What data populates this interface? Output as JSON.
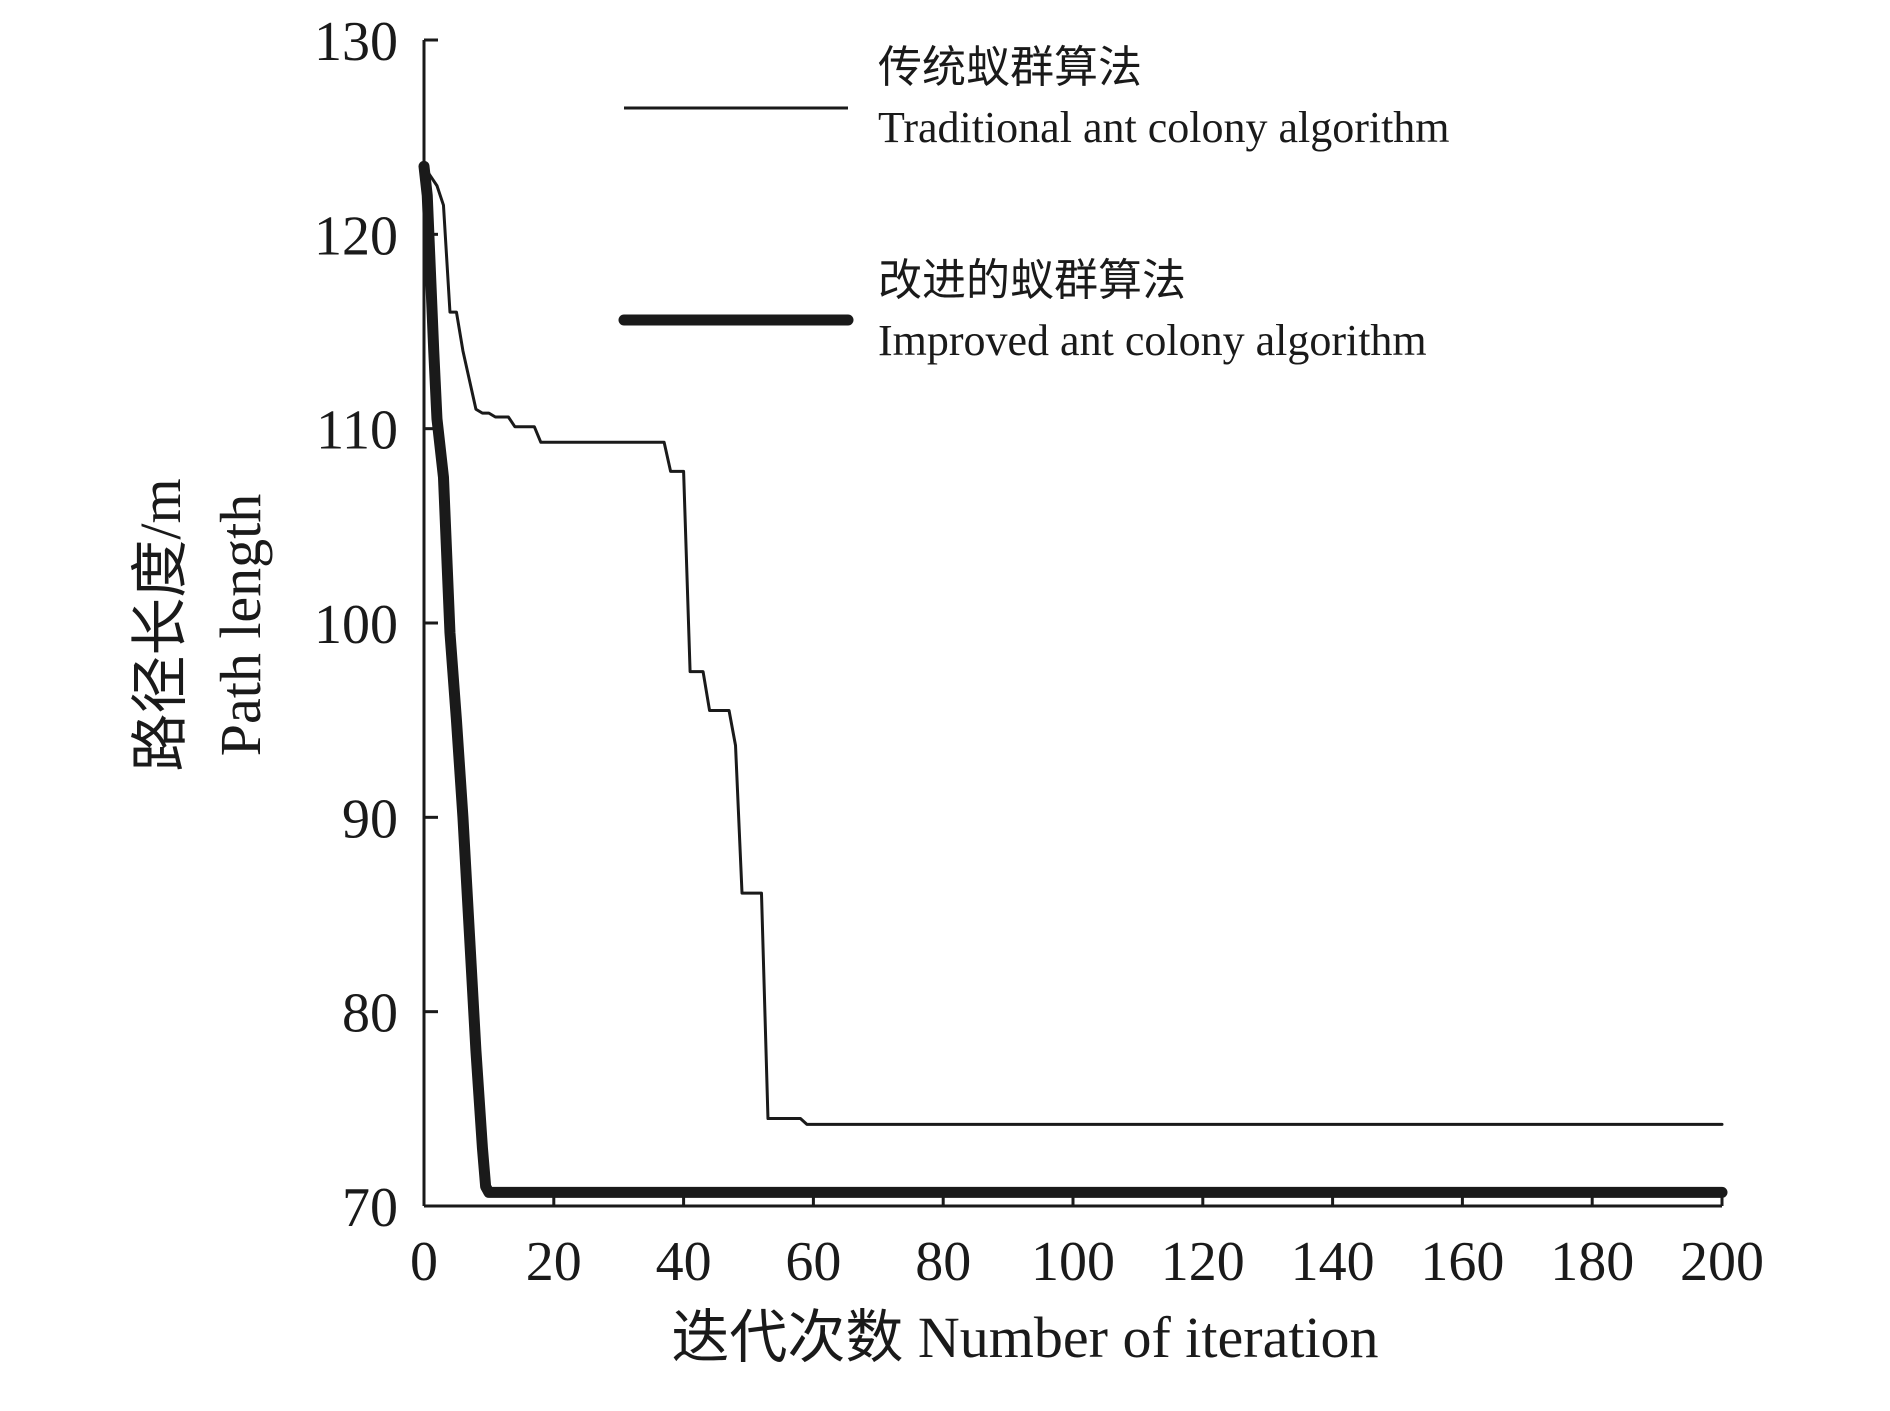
{
  "chart_data": {
    "type": "line",
    "xlabel": "迭代次数 Number of iteration",
    "ylabel_zh": "路径长度/m",
    "ylabel_en": "Path length",
    "xlim": [
      0,
      200
    ],
    "ylim": [
      70,
      130
    ],
    "xticks": [
      0,
      20,
      40,
      60,
      80,
      100,
      120,
      140,
      160,
      180,
      200
    ],
    "yticks": [
      70,
      80,
      90,
      100,
      110,
      120,
      130
    ],
    "grid": false,
    "legend_position": "top",
    "series": [
      {
        "name_zh": "传统蚁群算法",
        "name_en": "Traditional ant colony algorithm",
        "color": "#1a1a1a",
        "weight": "thin",
        "x": [
          0,
          1,
          2,
          3,
          4,
          5,
          6,
          7,
          8,
          9,
          10,
          11,
          12,
          13,
          14,
          15,
          16,
          17,
          18,
          19,
          20,
          25,
          30,
          35,
          36,
          37,
          38,
          39,
          40,
          41,
          42,
          43,
          44,
          45,
          46,
          47,
          48,
          49,
          50,
          51,
          52,
          53,
          54,
          55,
          56,
          57,
          58,
          59,
          60,
          70,
          80,
          100,
          120,
          140,
          160,
          180,
          200
        ],
        "y": [
          123.5,
          123,
          122.5,
          121.5,
          116,
          116,
          114,
          112.5,
          111,
          110.8,
          110.8,
          110.6,
          110.6,
          110.6,
          110.1,
          110.1,
          110.1,
          110.1,
          109.3,
          109.3,
          109.3,
          109.3,
          109.3,
          109.3,
          109.3,
          109.3,
          107.8,
          107.8,
          107.8,
          97.5,
          97.5,
          97.5,
          95.5,
          95.5,
          95.5,
          95.5,
          93.7,
          86.1,
          86.1,
          86.1,
          86.1,
          74.5,
          74.5,
          74.5,
          74.5,
          74.5,
          74.5,
          74.2,
          74.2,
          74.2,
          74.2,
          74.2,
          74.2,
          74.2,
          74.2,
          74.2,
          74.2
        ]
      },
      {
        "name_zh": "改进的蚁群算法",
        "name_en": "Improved ant colony algorithm",
        "color": "#1a1a1a",
        "weight": "thick",
        "x": [
          0,
          0.5,
          1,
          1.5,
          2,
          2.5,
          3,
          4,
          5,
          6,
          7,
          8,
          9,
          9.5,
          10,
          12,
          15,
          20,
          40,
          60,
          80,
          100,
          120,
          140,
          160,
          180,
          200
        ],
        "y": [
          123.5,
          122,
          118,
          114,
          110.5,
          109,
          107.5,
          99.5,
          95,
          90,
          84,
          78,
          73,
          71,
          70.7,
          70.7,
          70.7,
          70.7,
          70.7,
          70.7,
          70.7,
          70.7,
          70.7,
          70.7,
          70.7,
          70.7,
          70.7
        ]
      }
    ]
  }
}
